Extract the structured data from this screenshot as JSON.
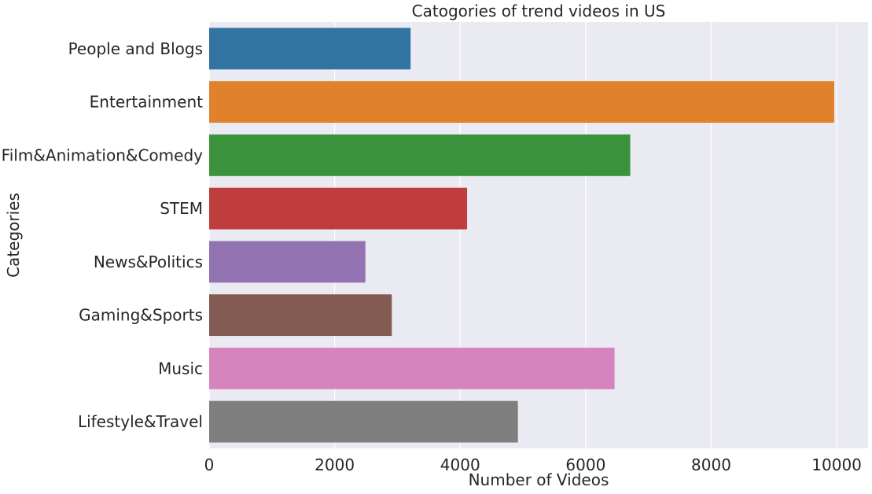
{
  "chart_data": {
    "type": "bar",
    "orientation": "horizontal",
    "title": "Catogories of trend videos in US",
    "xlabel": "Number of Videos",
    "ylabel": "Categories",
    "xlim": [
      0,
      10500
    ],
    "xticks": [
      0,
      2000,
      4000,
      6000,
      8000,
      10000
    ],
    "grid": true,
    "categories": [
      "People and Blogs",
      "Entertainment",
      "Film&Animation&Comedy",
      "STEM",
      "News&Politics",
      "Gaming&Sports",
      "Music",
      "Lifestyle&Travel"
    ],
    "values": [
      3210,
      9960,
      6710,
      4110,
      2490,
      2910,
      6460,
      4920
    ],
    "colors": [
      "#3274a1",
      "#e1812c",
      "#3a923a",
      "#c03d3e",
      "#9372b2",
      "#845b53",
      "#d684bd",
      "#7f7f7f"
    ],
    "background": "#eaeaf2"
  }
}
